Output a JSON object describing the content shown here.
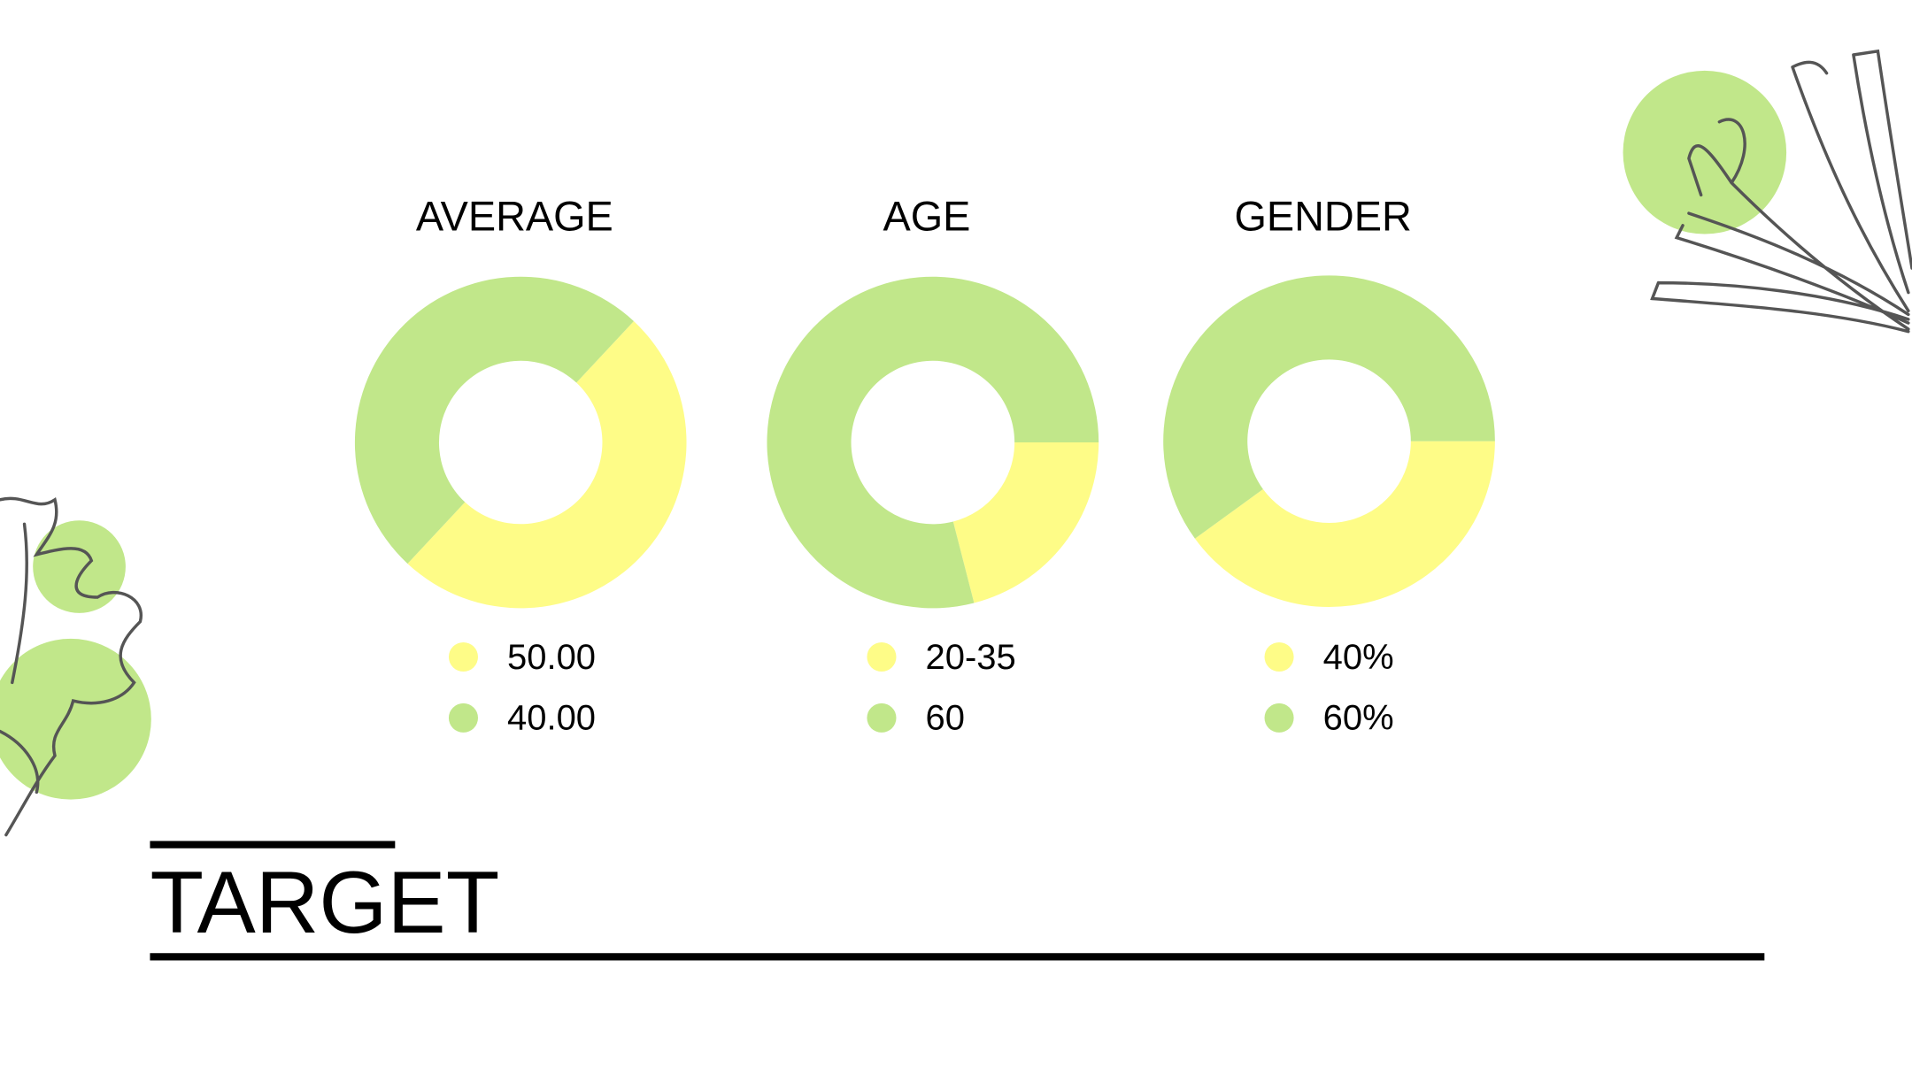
{
  "heading": "TARGET",
  "chart_data": [
    {
      "type": "pie",
      "title": "AVERAGE",
      "categories": [
        "50.00",
        "40.00"
      ],
      "values": [
        50,
        50
      ],
      "colors": [
        "#fefc87",
        "#c1e78a"
      ],
      "start_angle": 43
    },
    {
      "type": "pie",
      "title": "AGE",
      "categories": [
        "20-35",
        "60"
      ],
      "values": [
        21,
        79
      ],
      "colors": [
        "#fefc87",
        "#c1e78a"
      ],
      "start_angle": 90
    },
    {
      "type": "pie",
      "title": "GENDER",
      "categories": [
        "40%",
        "60%"
      ],
      "values": [
        40,
        60
      ],
      "colors": [
        "#fefc87",
        "#c1e78a"
      ],
      "start_angle": 90
    }
  ]
}
